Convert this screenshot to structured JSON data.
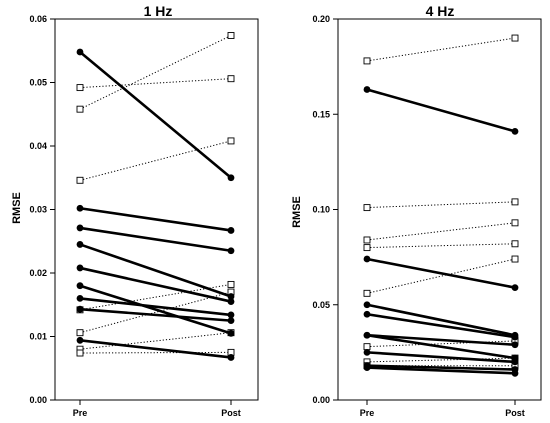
{
  "chart_data": [
    {
      "type": "line",
      "title": "1 Hz",
      "xlabel": "",
      "ylabel": "RMSE",
      "categories": [
        "Pre",
        "Post"
      ],
      "ylim": [
        0,
        0.06
      ],
      "yticks": [
        "0.00",
        "0.01",
        "0.02",
        "0.03",
        "0.04",
        "0.05",
        "0.06"
      ],
      "grid": false,
      "legend": "none",
      "series_groups": [
        {
          "marker": "open-square",
          "line_style": "dotted",
          "pairs": [
            [
              0.0492,
              0.0506
            ],
            [
              0.0458,
              0.0574
            ],
            [
              0.0346,
              0.0408
            ],
            [
              0.0142,
              0.0182
            ],
            [
              0.0106,
              0.017
            ],
            [
              0.008,
              0.0106
            ],
            [
              0.0074,
              0.0075
            ]
          ]
        },
        {
          "marker": "filled-circle",
          "line_style": "solid",
          "pairs": [
            [
              0.0548,
              0.035
            ],
            [
              0.0302,
              0.0267
            ],
            [
              0.0271,
              0.0235
            ],
            [
              0.0245,
              0.0163
            ],
            [
              0.0208,
              0.0155
            ],
            [
              0.018,
              0.0105
            ],
            [
              0.016,
              0.0134
            ],
            [
              0.0143,
              0.0125
            ],
            [
              0.0094,
              0.0067
            ]
          ]
        }
      ]
    },
    {
      "type": "line",
      "title": "4 Hz",
      "xlabel": "",
      "ylabel": "RMSE",
      "categories": [
        "Pre",
        "Post"
      ],
      "ylim": [
        0,
        0.2
      ],
      "yticks": [
        "0.00",
        "0.05",
        "0.10",
        "0.15",
        "0.20"
      ],
      "grid": false,
      "legend": "none",
      "series_groups": [
        {
          "marker": "open-square",
          "line_style": "dotted",
          "pairs": [
            [
              0.178,
              0.19
            ],
            [
              0.101,
              0.104
            ],
            [
              0.084,
              0.093
            ],
            [
              0.08,
              0.082
            ],
            [
              0.056,
              0.074
            ],
            [
              0.028,
              0.031
            ],
            [
              0.02,
              0.022
            ],
            [
              0.018,
              0.018
            ]
          ]
        },
        {
          "marker": "filled-circle",
          "line_style": "solid",
          "pairs": [
            [
              0.163,
              0.141
            ],
            [
              0.074,
              0.059
            ],
            [
              0.05,
              0.034
            ],
            [
              0.045,
              0.033
            ],
            [
              0.034,
              0.029
            ],
            [
              0.034,
              0.022
            ],
            [
              0.025,
              0.02
            ],
            [
              0.018,
              0.016
            ],
            [
              0.017,
              0.014
            ]
          ]
        }
      ]
    }
  ]
}
